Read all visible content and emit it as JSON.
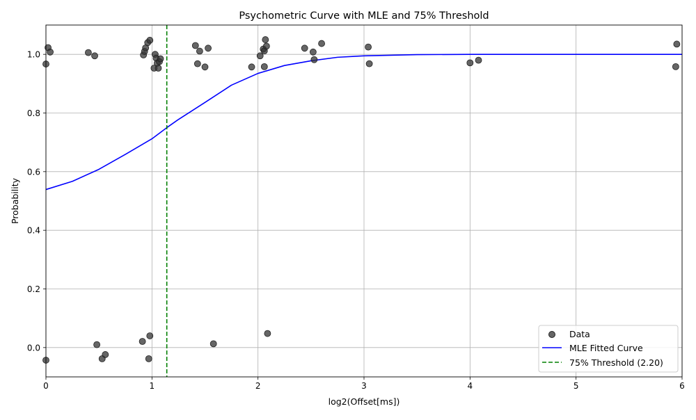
{
  "chart_data": {
    "type": "scatter",
    "title": "Psychometric Curve with MLE and 75% Threshold",
    "xlabel": "log2(Offset[ms])",
    "ylabel": "Probability",
    "xlim": [
      0,
      6
    ],
    "ylim": [
      -0.1,
      1.1
    ],
    "x_ticks": [
      0,
      1,
      2,
      3,
      4,
      5,
      6
    ],
    "y_ticks": [
      0.0,
      0.2,
      0.4,
      0.6,
      0.8,
      1.0
    ],
    "x_tick_labels": [
      "0",
      "1",
      "2",
      "3",
      "4",
      "5",
      "6"
    ],
    "y_tick_labels": [
      "0.0",
      "0.2",
      "0.4",
      "0.6",
      "0.8",
      "1.0"
    ],
    "grid": true,
    "legend": {
      "position": "lower-right",
      "entries": [
        "Data",
        "MLE Fitted Curve",
        "75% Threshold (2.20)"
      ]
    },
    "colors": {
      "data": "#333333",
      "curve": "#0000ff",
      "threshold": "#008000",
      "grid": "#b0b0b0"
    },
    "points": [
      {
        "x": 0.0,
        "y": 0.967
      },
      {
        "x": 0.0,
        "y": -0.043
      },
      {
        "x": 0.02,
        "y": 1.023
      },
      {
        "x": 0.04,
        "y": 1.008
      },
      {
        "x": 0.4,
        "y": 1.006
      },
      {
        "x": 0.46,
        "y": 0.995
      },
      {
        "x": 0.48,
        "y": 0.01
      },
      {
        "x": 0.53,
        "y": -0.038
      },
      {
        "x": 0.56,
        "y": -0.024
      },
      {
        "x": 0.91,
        "y": 0.021
      },
      {
        "x": 0.92,
        "y": 0.998
      },
      {
        "x": 0.93,
        "y": 1.01
      },
      {
        "x": 0.94,
        "y": 1.022
      },
      {
        "x": 0.96,
        "y": 1.04
      },
      {
        "x": 0.97,
        "y": -0.038
      },
      {
        "x": 0.98,
        "y": 1.048
      },
      {
        "x": 0.98,
        "y": 0.04
      },
      {
        "x": 1.02,
        "y": 0.953
      },
      {
        "x": 1.03,
        "y": 1.0
      },
      {
        "x": 1.04,
        "y": 0.987
      },
      {
        "x": 1.05,
        "y": 0.97
      },
      {
        "x": 1.06,
        "y": 0.953
      },
      {
        "x": 1.07,
        "y": 0.975
      },
      {
        "x": 1.08,
        "y": 0.985
      },
      {
        "x": 1.41,
        "y": 1.03
      },
      {
        "x": 1.43,
        "y": 0.968
      },
      {
        "x": 1.45,
        "y": 1.011
      },
      {
        "x": 1.5,
        "y": 0.957
      },
      {
        "x": 1.53,
        "y": 1.021
      },
      {
        "x": 1.58,
        "y": 0.013
      },
      {
        "x": 1.94,
        "y": 0.957
      },
      {
        "x": 2.02,
        "y": 0.995
      },
      {
        "x": 2.05,
        "y": 1.018
      },
      {
        "x": 2.06,
        "y": 0.958
      },
      {
        "x": 2.06,
        "y": 1.012
      },
      {
        "x": 2.07,
        "y": 1.05
      },
      {
        "x": 2.08,
        "y": 1.028
      },
      {
        "x": 2.09,
        "y": 0.048
      },
      {
        "x": 2.44,
        "y": 1.021
      },
      {
        "x": 2.52,
        "y": 1.008
      },
      {
        "x": 2.53,
        "y": 0.982
      },
      {
        "x": 2.6,
        "y": 1.037
      },
      {
        "x": 3.04,
        "y": 1.025
      },
      {
        "x": 3.05,
        "y": 0.968
      },
      {
        "x": 4.0,
        "y": 0.971
      },
      {
        "x": 4.08,
        "y": 0.98
      },
      {
        "x": 5.94,
        "y": 0.958
      },
      {
        "x": 5.95,
        "y": 1.035
      }
    ],
    "fitted_curve": {
      "name": "MLE Fitted Curve",
      "x": [
        0,
        0.25,
        0.5,
        0.75,
        1.0,
        1.14,
        1.25,
        1.5,
        1.75,
        2.0,
        2.25,
        2.5,
        2.75,
        3.0,
        3.5,
        4.0,
        5.0,
        6.0
      ],
      "y": [
        0.539,
        0.567,
        0.608,
        0.659,
        0.712,
        0.75,
        0.778,
        0.836,
        0.895,
        0.935,
        0.962,
        0.978,
        0.99,
        0.995,
        0.999,
        1.0,
        1.0,
        1.0
      ]
    },
    "threshold": {
      "name": "75% Threshold (2.20)",
      "x": 1.14
    }
  }
}
